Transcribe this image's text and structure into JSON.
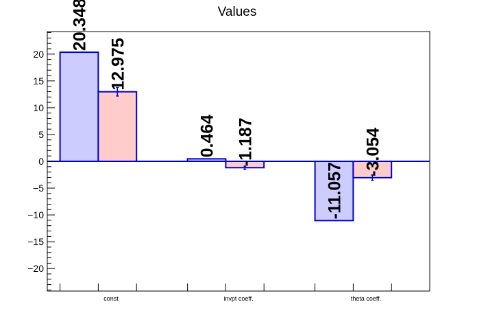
{
  "chart_data": {
    "type": "bar",
    "title": "Values",
    "categories": [
      "const",
      "invpt coeff.",
      "theta coeff."
    ],
    "series": [
      {
        "values": [
          20.348,
          0.464,
          -11.057
        ],
        "errors": [
          0,
          0,
          0
        ],
        "labels": [
          "20.348",
          "0.464",
          "-11.057"
        ],
        "fill": "#ccccff",
        "stroke": "#0000cc"
      },
      {
        "values": [
          12.975,
          -1.187,
          -3.054
        ],
        "errors": [
          0.8,
          0.3,
          0.5
        ],
        "labels": [
          "12.975",
          "-1.187",
          "-3.054"
        ],
        "fill": "#ffcccc",
        "stroke": "#0000cc"
      }
    ],
    "ylim": [
      -24.2,
      24.2
    ],
    "yticks": [
      -20,
      -15,
      -10,
      -5,
      0,
      5,
      10,
      15,
      20
    ],
    "ytick_labels": [
      "−20",
      "−15",
      "−10",
      "−5",
      "0",
      "5",
      "10",
      "15",
      "20"
    ],
    "xlabel": "",
    "ylabel": "",
    "grid": false,
    "legend": "none"
  }
}
